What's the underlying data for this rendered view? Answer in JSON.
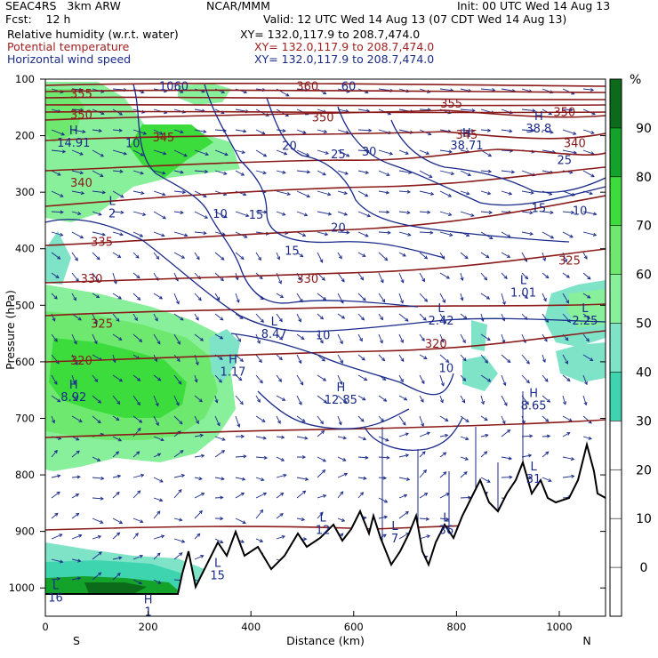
{
  "header": {
    "model": "SEAC4RS   3km ARW",
    "center": "NCAR/MMM",
    "init": "Init: 00 UTC Wed 14 Aug 13",
    "fcst": "Fcst:    12 h",
    "valid": "Valid: 12 UTC Wed 14 Aug 13 (07 CDT Wed 14 Aug 13)",
    "fields": [
      {
        "name": "Relative humidity (w.r.t. water)",
        "xy": "XY= 132.0,117.9 to 208.7,474.0",
        "color": "#000000"
      },
      {
        "name": "Potential temperature",
        "xy": "XY= 132.0,117.9 to 208.7,474.0",
        "color": "#a02020"
      },
      {
        "name": "Horizontal wind speed",
        "xy": "XY= 132.0,117.9 to 208.7,474.0",
        "color": "#1a2a8a"
      }
    ]
  },
  "chart_data": {
    "type": "cross-section",
    "xlabel": "Distance (km)",
    "ylabel": "Pressure (hPa)",
    "xlim": [
      0,
      1090
    ],
    "ylim": [
      1050,
      100
    ],
    "x_ticks": [
      0,
      200,
      400,
      600,
      800,
      1000
    ],
    "y_ticks": [
      100,
      200,
      300,
      400,
      500,
      600,
      700,
      800,
      900,
      1000
    ],
    "x_end_labels": {
      "left": "S",
      "right": "N"
    },
    "colorbar": {
      "unit": "%",
      "labels": [
        "90",
        "80",
        "70",
        "60",
        "50",
        "40",
        "30",
        "20",
        "10",
        "0"
      ],
      "colors": [
        "#0b6b1a",
        "#13a22a",
        "#3ddc3d",
        "#6fe86f",
        "#88f09a",
        "#7fe3c8",
        "#3fd4b0",
        "#ffffff",
        "#ffffff",
        "#ffffff",
        "#ffffff"
      ]
    },
    "theta_levels": [
      {
        "label": "355",
        "x": 70,
        "p": 133
      },
      {
        "label": "350",
        "x": 70,
        "p": 170
      },
      {
        "label": "345",
        "x": 230,
        "p": 210
      },
      {
        "label": "340",
        "x": 70,
        "p": 290
      },
      {
        "label": "335",
        "x": 110,
        "p": 395
      },
      {
        "label": "330",
        "x": 90,
        "p": 460
      },
      {
        "label": "325",
        "x": 110,
        "p": 540
      },
      {
        "label": "320",
        "x": 70,
        "p": 605
      },
      {
        "label": "330",
        "x": 510,
        "p": 460
      },
      {
        "label": "350",
        "x": 540,
        "p": 175
      },
      {
        "label": "355",
        "x": 790,
        "p": 150
      },
      {
        "label": "360",
        "x": 510,
        "p": 120
      },
      {
        "label": "350",
        "x": 1010,
        "p": 165
      },
      {
        "label": "345",
        "x": 820,
        "p": 205
      },
      {
        "label": "340",
        "x": 1030,
        "p": 220
      },
      {
        "label": "325",
        "x": 1020,
        "p": 428
      },
      {
        "label": "320",
        "x": 760,
        "p": 575
      }
    ],
    "wind_labels": [
      {
        "label": "10",
        "x": 170,
        "p": 220
      },
      {
        "label": "10",
        "x": 340,
        "p": 345
      },
      {
        "label": "15",
        "x": 410,
        "p": 347
      },
      {
        "label": "15",
        "x": 480,
        "p": 411
      },
      {
        "label": "20",
        "x": 475,
        "p": 225
      },
      {
        "label": "20",
        "x": 570,
        "p": 370
      },
      {
        "label": "25",
        "x": 570,
        "p": 240
      },
      {
        "label": "30",
        "x": 630,
        "p": 235
      },
      {
        "label": "25",
        "x": 1010,
        "p": 250
      },
      {
        "label": "15",
        "x": 960,
        "p": 335
      },
      {
        "label": "10",
        "x": 1040,
        "p": 340
      },
      {
        "label": "10",
        "x": 540,
        "p": 560
      },
      {
        "label": "10",
        "x": 780,
        "p": 618
      },
      {
        "label": "1060",
        "x": 250,
        "p": 120
      },
      {
        "label": "60",
        "x": 590,
        "p": 120
      }
    ],
    "extrema": [
      {
        "type": "H",
        "value": "14.91",
        "x": 55,
        "p": 210
      },
      {
        "type": "L",
        "value": "2",
        "x": 130,
        "p": 335
      },
      {
        "type": "L",
        "value": "8.47",
        "x": 445,
        "p": 548
      },
      {
        "type": "H",
        "value": "1.17",
        "x": 365,
        "p": 615
      },
      {
        "type": "H",
        "value": "12.85",
        "x": 575,
        "p": 665
      },
      {
        "type": "H",
        "value": "8.92",
        "x": 55,
        "p": 660
      },
      {
        "type": "L",
        "value": "2.42",
        "x": 770,
        "p": 525
      },
      {
        "type": "L",
        "value": "1.01",
        "x": 930,
        "p": 475
      },
      {
        "type": "L",
        "value": "2.25",
        "x": 1050,
        "p": 525
      },
      {
        "type": "H",
        "value": "8.65",
        "x": 950,
        "p": 675
      },
      {
        "type": "H",
        "value": "38.8",
        "x": 960,
        "p": 185
      },
      {
        "type": "H",
        "value": "38.71",
        "x": 820,
        "p": 215
      },
      {
        "type": "L",
        "value": "12",
        "x": 540,
        "p": 895
      },
      {
        "type": "L",
        "value": "15",
        "x": 335,
        "p": 975
      },
      {
        "type": "L",
        "value": "7",
        "x": 680,
        "p": 910
      },
      {
        "type": "L",
        "value": "36",
        "x": 780,
        "p": 895
      },
      {
        "type": "L",
        "value": "16",
        "x": 20,
        "p": 1015
      },
      {
        "type": "H",
        "value": "1",
        "x": 200,
        "p": 1040
      },
      {
        "type": "L",
        "value": "31",
        "x": 950,
        "p": 805
      }
    ]
  }
}
